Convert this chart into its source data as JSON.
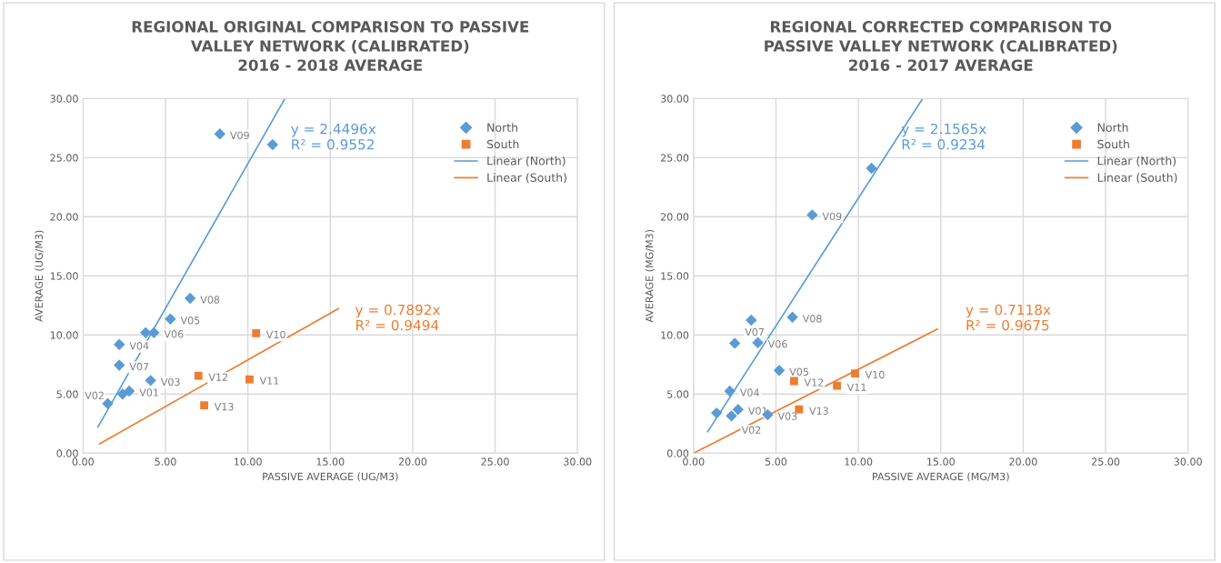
{
  "chart_data": [
    {
      "type": "scatter",
      "title": "REGIONAL ORIGINAL COMPARISON TO PASSIVE\nVALLEY NETWORK (CALIBRATED)\n2016 - 2018 AVERAGE",
      "xlabel": "PASSIVE AVERAGE (UG/M3)",
      "ylabel": "AVERAGE (UG/M3)",
      "xlim": [
        0,
        30
      ],
      "ylim": [
        0,
        30
      ],
      "xticks": [
        {
          "value": 0,
          "label": "0.00"
        },
        {
          "value": 5,
          "label": "5.00"
        },
        {
          "value": 10,
          "label": "10.00"
        },
        {
          "value": 15,
          "label": "15.00"
        },
        {
          "value": 20,
          "label": "20.00"
        },
        {
          "value": 25,
          "label": "25.00"
        },
        {
          "value": 30,
          "label": "30.00"
        }
      ],
      "yticks": [
        {
          "value": 0,
          "label": "0.00"
        },
        {
          "value": 5,
          "label": "5.00"
        },
        {
          "value": 10,
          "label": "10.00"
        },
        {
          "value": 15,
          "label": "15.00"
        },
        {
          "value": 20,
          "label": "20.00"
        },
        {
          "value": 25,
          "label": "25.00"
        },
        {
          "value": 30,
          "label": "30.00"
        }
      ],
      "grid": true,
      "legend": "top right",
      "series": [
        {
          "name": "North",
          "type": "scatter",
          "marker": "diamond",
          "color": "#5b9bd5",
          "x": [
            8.3,
            11.5,
            6.5,
            5.3,
            3.8,
            4.3,
            2.2,
            2.2,
            4.1,
            2.4,
            2.8,
            1.5
          ],
          "values": [
            27.0,
            26.1,
            13.1,
            11.35,
            10.2,
            10.2,
            9.2,
            7.45,
            6.15,
            5.0,
            5.25,
            4.2
          ]
        },
        {
          "name": "South",
          "type": "scatter",
          "marker": "square",
          "color": "#ed7d31",
          "x": [
            10.5,
            7.0,
            10.1,
            7.35
          ],
          "values": [
            10.15,
            6.55,
            6.25,
            4.05
          ]
        },
        {
          "name": "Linear (North)",
          "type": "line",
          "line_style": "solid",
          "color": "#5b9bd5",
          "x": [
            0.9,
            12.25
          ],
          "values": [
            2.2,
            30.0
          ]
        },
        {
          "name": "Linear (South)",
          "type": "line",
          "line_style": "solid",
          "color": "#ed7d31",
          "x": [
            1.0,
            15.5
          ],
          "values": [
            0.79,
            12.23
          ]
        }
      ],
      "annotations": [
        "y = 2.4496x\nR² = 0.9552",
        "y = 0.7892x\nR² = 0.9494",
        {
          "text": "V09",
          "x": 8.3,
          "y": 27.0
        },
        {
          "text": "V08",
          "x": 6.5,
          "y": 13.1
        },
        {
          "text": "V05",
          "x": 5.3,
          "y": 11.35
        },
        {
          "text": "V06",
          "x": 4.3,
          "y": 10.2
        },
        {
          "text": "V04",
          "x": 2.2,
          "y": 9.2
        },
        {
          "text": "V07",
          "x": 2.2,
          "y": 7.45
        },
        {
          "text": "V03",
          "x": 4.1,
          "y": 6.15
        },
        {
          "text": "V02",
          "x": 2.4,
          "y": 5.0
        },
        {
          "text": "V01",
          "x": 2.8,
          "y": 5.25
        },
        {
          "text": "V10",
          "x": 10.5,
          "y": 10.15
        },
        {
          "text": "V12",
          "x": 7.0,
          "y": 6.55
        },
        {
          "text": "V11",
          "x": 10.1,
          "y": 6.25
        },
        {
          "text": "V13",
          "x": 7.35,
          "y": 4.05
        }
      ]
    },
    {
      "type": "scatter",
      "title": "REGIONAL CORRECTED COMPARISON TO\nPASSIVE VALLEY NETWORK (CALIBRATED)\n2016 - 2017 AVERAGE",
      "xlabel": "PASSIVE AVERAGE (MG/M3)",
      "ylabel": "AVERAGE (MG/M3)",
      "xlim": [
        0,
        30
      ],
      "ylim": [
        0,
        30
      ],
      "xticks": [
        {
          "value": 0,
          "label": "0.00"
        },
        {
          "value": 5,
          "label": "5.00"
        },
        {
          "value": 10,
          "label": "10.00"
        },
        {
          "value": 15,
          "label": "15.00"
        },
        {
          "value": 20,
          "label": "20.00"
        },
        {
          "value": 25,
          "label": "25.00"
        },
        {
          "value": 30,
          "label": "30.00"
        }
      ],
      "yticks": [
        {
          "value": 0,
          "label": "0.00"
        },
        {
          "value": 5,
          "label": "5.00"
        },
        {
          "value": 10,
          "label": "10.00"
        },
        {
          "value": 15,
          "label": "15.00"
        },
        {
          "value": 20,
          "label": "20.00"
        },
        {
          "value": 25,
          "label": "25.00"
        },
        {
          "value": 30,
          "label": "30.00"
        }
      ],
      "grid": true,
      "legend": "top right",
      "series": [
        {
          "name": "North",
          "type": "scatter",
          "marker": "diamond",
          "color": "#5b9bd5",
          "x": [
            10.8,
            7.2,
            3.5,
            6.0,
            2.5,
            3.9,
            5.2,
            2.2,
            1.4,
            2.3,
            2.7,
            4.5
          ],
          "values": [
            24.1,
            20.15,
            11.25,
            11.5,
            9.3,
            9.35,
            7.0,
            5.25,
            3.4,
            3.15,
            3.7,
            3.25
          ]
        },
        {
          "name": "South",
          "type": "scatter",
          "marker": "square",
          "color": "#ed7d31",
          "x": [
            9.8,
            6.1,
            8.7,
            6.4
          ],
          "values": [
            6.75,
            6.1,
            5.7,
            3.7
          ]
        },
        {
          "name": "Linear (North)",
          "type": "line",
          "line_style": "solid",
          "color": "#5b9bd5",
          "x": [
            0.85,
            13.9
          ],
          "values": [
            1.8,
            30.0
          ]
        },
        {
          "name": "Linear (South)",
          "type": "line",
          "line_style": "solid",
          "color": "#ed7d31",
          "x": [
            0.0,
            14.8
          ],
          "values": [
            0.0,
            10.5
          ]
        }
      ],
      "annotations": [
        "y = 2.1565x\nR² = 0.9234",
        "y = 0.7118x\nR² = 0.9675",
        {
          "text": "V09",
          "x": 7.2,
          "y": 20.15
        },
        {
          "text": "V08",
          "x": 6.0,
          "y": 11.5
        },
        {
          "text": "V07",
          "x": 2.5,
          "y": 9.3
        },
        {
          "text": "V06",
          "x": 3.9,
          "y": 9.35
        },
        {
          "text": "V05",
          "x": 5.2,
          "y": 7.0
        },
        {
          "text": "V04",
          "x": 2.2,
          "y": 5.25
        },
        {
          "text": "V02",
          "x": 2.3,
          "y": 3.15
        },
        {
          "text": "V01",
          "x": 2.7,
          "y": 3.7
        },
        {
          "text": "V03",
          "x": 4.5,
          "y": 3.25
        },
        {
          "text": "V10",
          "x": 9.8,
          "y": 6.75
        },
        {
          "text": "V12",
          "x": 6.1,
          "y": 6.1
        },
        {
          "text": "V11",
          "x": 8.7,
          "y": 5.7
        },
        {
          "text": "V13",
          "x": 6.4,
          "y": 3.7
        }
      ]
    }
  ]
}
